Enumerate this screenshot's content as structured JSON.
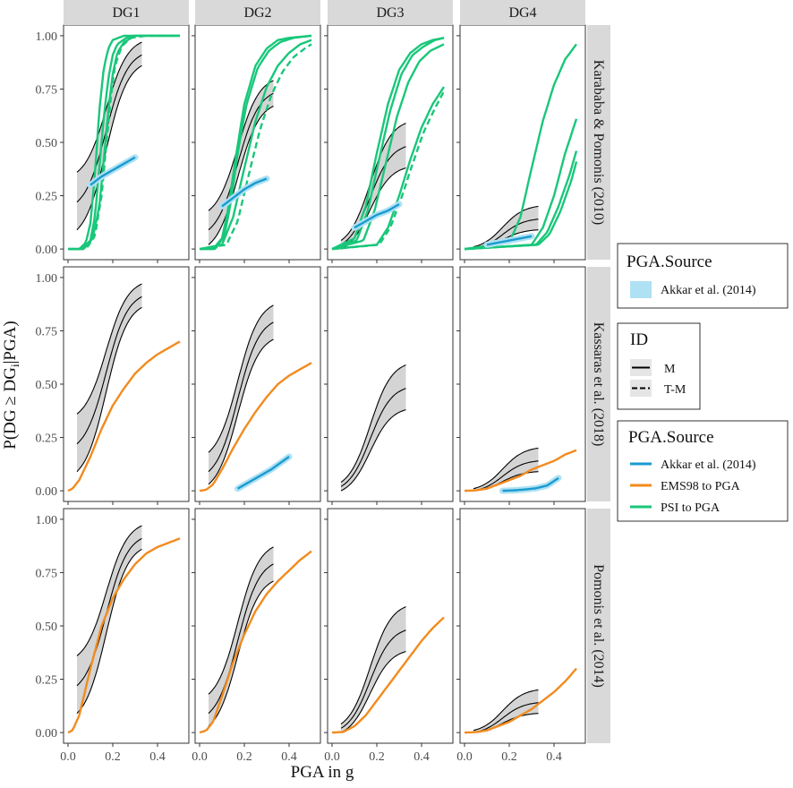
{
  "chart_data": {
    "type": "line",
    "title": "",
    "xlabel": "PGA in g",
    "ylabel": "P(DG ≥ DG_i|PGA)",
    "ylabel_main": "P(DG ≥ DG",
    "ylabel_sub": "i",
    "ylabel_tail": "|PGA)",
    "xlim": [
      -0.02,
      0.54
    ],
    "ylim": [
      -0.05,
      1.05
    ],
    "x_ticks": [
      "0.0",
      "0.2",
      "0.4"
    ],
    "x_tick_values": [
      0.0,
      0.2,
      0.4
    ],
    "y_ticks": [
      "0.00",
      "0.25",
      "0.50",
      "0.75",
      "1.00"
    ],
    "y_tick_values": [
      0.0,
      0.25,
      0.5,
      0.75,
      1.0
    ],
    "columns": [
      "DG1",
      "DG2",
      "DG3",
      "DG4"
    ],
    "rows": [
      "Karababa & Pomonis (2010)",
      "Kassaras et al. (2018)",
      "Pomonis et al. (2014)"
    ],
    "colors": {
      "akkar": "#1a9bd0",
      "ems98": "#f28b1e",
      "psi": "#19c77a",
      "band": "#bdbdbd",
      "akkar_fill": "#aee1f3",
      "curve": "#000000"
    },
    "legends": [
      {
        "title": "PGA.Source",
        "items": [
          {
            "label": "Akkar et al. (2014)",
            "kind": "fill"
          }
        ]
      },
      {
        "title": "ID",
        "items": [
          {
            "label": "M",
            "kind": "solid"
          },
          {
            "label": "T-M",
            "kind": "dashed"
          }
        ]
      },
      {
        "title": "PGA.Source",
        "items": [
          {
            "label": "Akkar et al. (2014)",
            "kind": "line",
            "color_key": "akkar"
          },
          {
            "label": "EMS98 to PGA",
            "kind": "line",
            "color_key": "ems98"
          },
          {
            "label": "PSI to PGA",
            "kind": "line",
            "color_key": "psi"
          }
        ]
      }
    ],
    "bands": [
      [
        {
          "x": [
            0.04,
            0.33
          ],
          "mid": [
            0.22,
            0.91
          ],
          "low": [
            0.09,
            0.86
          ],
          "high": [
            0.36,
            0.97
          ]
        },
        {
          "x": [
            0.04,
            0.33
          ],
          "mid": [
            0.09,
            0.73
          ],
          "low": [
            0.02,
            0.67
          ],
          "high": [
            0.18,
            0.79
          ]
        },
        {
          "x": [
            0.04,
            0.33
          ],
          "mid": [
            0.02,
            0.48
          ],
          "low": [
            0.0,
            0.38
          ],
          "high": [
            0.04,
            0.59
          ]
        },
        {
          "x": [
            0.04,
            0.33
          ],
          "mid": [
            0.0,
            0.14
          ],
          "low": [
            0.0,
            0.09
          ],
          "high": [
            0.01,
            0.2
          ]
        }
      ],
      [
        {
          "x": [
            0.04,
            0.33
          ],
          "mid": [
            0.22,
            0.91
          ],
          "low": [
            0.09,
            0.86
          ],
          "high": [
            0.36,
            0.97
          ]
        },
        {
          "x": [
            0.04,
            0.33
          ],
          "mid": [
            0.09,
            0.79
          ],
          "low": [
            0.03,
            0.71
          ],
          "high": [
            0.18,
            0.87
          ]
        },
        {
          "x": [
            0.04,
            0.33
          ],
          "mid": [
            0.02,
            0.48
          ],
          "low": [
            0.0,
            0.38
          ],
          "high": [
            0.04,
            0.59
          ]
        },
        {
          "x": [
            0.04,
            0.33
          ],
          "mid": [
            0.0,
            0.14
          ],
          "low": [
            0.0,
            0.09
          ],
          "high": [
            0.01,
            0.2
          ]
        }
      ],
      [
        {
          "x": [
            0.04,
            0.33
          ],
          "mid": [
            0.22,
            0.91
          ],
          "low": [
            0.09,
            0.86
          ],
          "high": [
            0.36,
            0.97
          ]
        },
        {
          "x": [
            0.04,
            0.33
          ],
          "mid": [
            0.09,
            0.79
          ],
          "low": [
            0.03,
            0.71
          ],
          "high": [
            0.18,
            0.87
          ]
        },
        {
          "x": [
            0.04,
            0.33
          ],
          "mid": [
            0.02,
            0.48
          ],
          "low": [
            0.0,
            0.38
          ],
          "high": [
            0.04,
            0.59
          ]
        },
        {
          "x": [
            0.04,
            0.33
          ],
          "mid": [
            0.0,
            0.14
          ],
          "low": [
            0.0,
            0.09
          ],
          "high": [
            0.01,
            0.2
          ]
        }
      ]
    ],
    "series": [
      {
        "name": "PSI to PGA M",
        "row": 0,
        "col": 0,
        "color_key": "psi",
        "dash": false,
        "x": [
          0.0,
          0.05,
          0.08,
          0.1,
          0.12,
          0.14,
          0.16,
          0.18,
          0.2,
          0.25,
          0.3,
          0.5
        ],
        "y": [
          0.0,
          0.0,
          0.03,
          0.12,
          0.35,
          0.65,
          0.85,
          0.94,
          0.98,
          1.0,
          1.0,
          1.0
        ]
      },
      {
        "name": "PSI to PGA M",
        "row": 0,
        "col": 0,
        "color_key": "psi",
        "dash": false,
        "x": [
          0.0,
          0.06,
          0.1,
          0.12,
          0.14,
          0.16,
          0.18,
          0.2,
          0.22,
          0.26,
          0.3,
          0.5
        ],
        "y": [
          0.0,
          0.0,
          0.04,
          0.15,
          0.38,
          0.62,
          0.8,
          0.91,
          0.96,
          0.99,
          1.0,
          1.0
        ]
      },
      {
        "name": "PSI to PGA M",
        "row": 0,
        "col": 0,
        "color_key": "psi",
        "dash": false,
        "x": [
          0.0,
          0.07,
          0.11,
          0.14,
          0.16,
          0.18,
          0.2,
          0.22,
          0.25,
          0.3,
          0.5
        ],
        "y": [
          0.0,
          0.0,
          0.05,
          0.2,
          0.42,
          0.65,
          0.82,
          0.92,
          0.97,
          1.0,
          1.0
        ]
      },
      {
        "name": "PSI to PGA T-M",
        "row": 0,
        "col": 0,
        "color_key": "psi",
        "dash": true,
        "x": [
          0.0,
          0.08,
          0.12,
          0.15,
          0.17,
          0.19,
          0.21,
          0.24,
          0.28,
          0.35,
          0.5
        ],
        "y": [
          0.0,
          0.0,
          0.06,
          0.25,
          0.48,
          0.7,
          0.86,
          0.95,
          0.99,
          1.0,
          1.0
        ]
      },
      {
        "name": "Akkar et al. (2014) M",
        "row": 0,
        "col": 0,
        "color_key": "akkar",
        "dash": false,
        "x": [
          0.1,
          0.15,
          0.2,
          0.25,
          0.3
        ],
        "y": [
          0.3,
          0.34,
          0.37,
          0.4,
          0.43
        ]
      },
      {
        "name": "PSI to PGA M",
        "row": 0,
        "col": 1,
        "color_key": "psi",
        "dash": false,
        "x": [
          0.0,
          0.06,
          0.1,
          0.13,
          0.16,
          0.2,
          0.25,
          0.3,
          0.35,
          0.4,
          0.5
        ],
        "y": [
          0.0,
          0.0,
          0.05,
          0.2,
          0.42,
          0.68,
          0.86,
          0.94,
          0.98,
          0.99,
          1.0
        ]
      },
      {
        "name": "PSI to PGA M",
        "row": 0,
        "col": 1,
        "color_key": "psi",
        "dash": false,
        "x": [
          0.0,
          0.07,
          0.11,
          0.14,
          0.17,
          0.21,
          0.26,
          0.31,
          0.36,
          0.42,
          0.5
        ],
        "y": [
          0.0,
          0.0,
          0.06,
          0.22,
          0.45,
          0.68,
          0.85,
          0.93,
          0.97,
          0.99,
          1.0
        ]
      },
      {
        "name": "PSI to PGA M",
        "row": 0,
        "col": 1,
        "color_key": "psi",
        "dash": false,
        "x": [
          0.0,
          0.1,
          0.15,
          0.2,
          0.25,
          0.3,
          0.35,
          0.4,
          0.45,
          0.5
        ],
        "y": [
          0.0,
          0.02,
          0.15,
          0.38,
          0.6,
          0.76,
          0.86,
          0.92,
          0.96,
          0.98
        ]
      },
      {
        "name": "PSI to PGA T-M",
        "row": 0,
        "col": 1,
        "color_key": "psi",
        "dash": true,
        "x": [
          0.0,
          0.12,
          0.17,
          0.22,
          0.27,
          0.32,
          0.37,
          0.42,
          0.47,
          0.5
        ],
        "y": [
          0.0,
          0.02,
          0.13,
          0.35,
          0.56,
          0.72,
          0.83,
          0.9,
          0.94,
          0.96
        ]
      },
      {
        "name": "Akkar et al. (2014) M",
        "row": 0,
        "col": 1,
        "color_key": "akkar",
        "dash": false,
        "x": [
          0.1,
          0.15,
          0.2,
          0.25,
          0.3
        ],
        "y": [
          0.2,
          0.24,
          0.28,
          0.31,
          0.33
        ]
      },
      {
        "name": "PSI to PGA M",
        "row": 0,
        "col": 2,
        "color_key": "psi",
        "dash": false,
        "x": [
          0.0,
          0.1,
          0.15,
          0.2,
          0.25,
          0.3,
          0.35,
          0.4,
          0.45,
          0.5
        ],
        "y": [
          0.0,
          0.05,
          0.2,
          0.45,
          0.68,
          0.84,
          0.92,
          0.96,
          0.98,
          0.99
        ]
      },
      {
        "name": "PSI to PGA M",
        "row": 0,
        "col": 2,
        "color_key": "psi",
        "dash": false,
        "x": [
          0.0,
          0.11,
          0.16,
          0.21,
          0.26,
          0.31,
          0.36,
          0.41,
          0.46,
          0.5
        ],
        "y": [
          0.0,
          0.04,
          0.18,
          0.42,
          0.65,
          0.82,
          0.91,
          0.95,
          0.98,
          0.99
        ]
      },
      {
        "name": "PSI to PGA M",
        "row": 0,
        "col": 2,
        "color_key": "psi",
        "dash": false,
        "x": [
          0.0,
          0.14,
          0.19,
          0.24,
          0.29,
          0.34,
          0.39,
          0.44,
          0.5
        ],
        "y": [
          0.0,
          0.04,
          0.18,
          0.4,
          0.62,
          0.78,
          0.88,
          0.93,
          0.96
        ]
      },
      {
        "name": "PSI to PGA M",
        "row": 0,
        "col": 2,
        "color_key": "psi",
        "dash": false,
        "x": [
          0.0,
          0.2,
          0.25,
          0.3,
          0.35,
          0.4,
          0.45,
          0.5
        ],
        "y": [
          0.0,
          0.02,
          0.1,
          0.25,
          0.42,
          0.57,
          0.68,
          0.76
        ]
      },
      {
        "name": "PSI to PGA T-M",
        "row": 0,
        "col": 2,
        "color_key": "psi",
        "dash": true,
        "x": [
          0.0,
          0.21,
          0.26,
          0.31,
          0.36,
          0.41,
          0.46,
          0.5
        ],
        "y": [
          0.0,
          0.02,
          0.1,
          0.24,
          0.4,
          0.55,
          0.66,
          0.74
        ]
      },
      {
        "name": "Akkar et al. (2014) M",
        "row": 0,
        "col": 2,
        "color_key": "akkar",
        "dash": false,
        "x": [
          0.1,
          0.15,
          0.2,
          0.25,
          0.3
        ],
        "y": [
          0.1,
          0.13,
          0.16,
          0.18,
          0.21
        ]
      },
      {
        "name": "PSI to PGA M",
        "row": 0,
        "col": 3,
        "color_key": "psi",
        "dash": false,
        "x": [
          0.0,
          0.2,
          0.25,
          0.3,
          0.35,
          0.4,
          0.45,
          0.5
        ],
        "y": [
          0.0,
          0.03,
          0.15,
          0.38,
          0.6,
          0.77,
          0.89,
          0.96
        ]
      },
      {
        "name": "PSI to PGA M",
        "row": 0,
        "col": 3,
        "color_key": "psi",
        "dash": false,
        "x": [
          0.0,
          0.3,
          0.35,
          0.4,
          0.45,
          0.5
        ],
        "y": [
          0.0,
          0.02,
          0.1,
          0.25,
          0.45,
          0.61
        ]
      },
      {
        "name": "PSI to PGA M",
        "row": 0,
        "col": 3,
        "color_key": "psi",
        "dash": false,
        "x": [
          0.0,
          0.32,
          0.37,
          0.42,
          0.47,
          0.5
        ],
        "y": [
          0.0,
          0.02,
          0.08,
          0.2,
          0.35,
          0.46
        ]
      },
      {
        "name": "PSI to PGA M",
        "row": 0,
        "col": 3,
        "color_key": "psi",
        "dash": false,
        "x": [
          0.0,
          0.33,
          0.38,
          0.43,
          0.48,
          0.5
        ],
        "y": [
          0.0,
          0.02,
          0.07,
          0.18,
          0.33,
          0.41
        ]
      },
      {
        "name": "Akkar et al. (2014) M",
        "row": 0,
        "col": 3,
        "color_key": "akkar",
        "dash": false,
        "x": [
          0.1,
          0.15,
          0.2,
          0.25,
          0.3
        ],
        "y": [
          0.02,
          0.03,
          0.04,
          0.05,
          0.06
        ]
      },
      {
        "name": "EMS98 to PGA M",
        "row": 1,
        "col": 0,
        "color_key": "ems98",
        "dash": false,
        "x": [
          0.0,
          0.02,
          0.05,
          0.1,
          0.15,
          0.2,
          0.25,
          0.3,
          0.35,
          0.4,
          0.45,
          0.5
        ],
        "y": [
          0.0,
          0.01,
          0.05,
          0.16,
          0.29,
          0.4,
          0.48,
          0.55,
          0.6,
          0.64,
          0.67,
          0.7
        ]
      },
      {
        "name": "EMS98 to PGA M",
        "row": 1,
        "col": 1,
        "color_key": "ems98",
        "dash": false,
        "x": [
          0.0,
          0.03,
          0.06,
          0.1,
          0.15,
          0.2,
          0.25,
          0.3,
          0.35,
          0.4,
          0.45,
          0.5
        ],
        "y": [
          0.0,
          0.005,
          0.03,
          0.1,
          0.2,
          0.29,
          0.37,
          0.44,
          0.5,
          0.54,
          0.57,
          0.6
        ]
      },
      {
        "name": "Akkar et al. (2014) M",
        "row": 1,
        "col": 1,
        "color_key": "akkar",
        "dash": false,
        "x": [
          0.17,
          0.22,
          0.27,
          0.32,
          0.36,
          0.4
        ],
        "y": [
          0.01,
          0.04,
          0.07,
          0.1,
          0.13,
          0.16
        ]
      },
      {
        "name": "EMS98 to PGA M",
        "row": 1,
        "col": 3,
        "color_key": "ems98",
        "dash": false,
        "x": [
          0.0,
          0.05,
          0.1,
          0.15,
          0.2,
          0.25,
          0.3,
          0.35,
          0.4,
          0.45,
          0.5
        ],
        "y": [
          0.0,
          0.002,
          0.01,
          0.03,
          0.05,
          0.07,
          0.1,
          0.12,
          0.14,
          0.17,
          0.19
        ]
      },
      {
        "name": "Akkar et al. (2014) M",
        "row": 1,
        "col": 3,
        "color_key": "akkar",
        "dash": false,
        "x": [
          0.17,
          0.22,
          0.27,
          0.32,
          0.37,
          0.42
        ],
        "y": [
          0.0,
          0.002,
          0.006,
          0.012,
          0.025,
          0.06
        ]
      },
      {
        "name": "EMS98 to PGA M",
        "row": 2,
        "col": 0,
        "color_key": "ems98",
        "dash": false,
        "x": [
          0.0,
          0.02,
          0.05,
          0.1,
          0.15,
          0.2,
          0.25,
          0.3,
          0.35,
          0.4,
          0.45,
          0.5
        ],
        "y": [
          0.0,
          0.01,
          0.08,
          0.3,
          0.5,
          0.63,
          0.72,
          0.79,
          0.84,
          0.87,
          0.89,
          0.91
        ]
      },
      {
        "name": "EMS98 to PGA M",
        "row": 2,
        "col": 1,
        "color_key": "ems98",
        "dash": false,
        "x": [
          0.0,
          0.03,
          0.06,
          0.1,
          0.15,
          0.2,
          0.25,
          0.3,
          0.35,
          0.4,
          0.45,
          0.5
        ],
        "y": [
          0.0,
          0.01,
          0.05,
          0.17,
          0.33,
          0.46,
          0.57,
          0.65,
          0.71,
          0.76,
          0.81,
          0.85
        ]
      },
      {
        "name": "EMS98 to PGA M",
        "row": 2,
        "col": 2,
        "color_key": "ems98",
        "dash": false,
        "x": [
          0.0,
          0.05,
          0.1,
          0.15,
          0.2,
          0.25,
          0.3,
          0.35,
          0.4,
          0.45,
          0.5
        ],
        "y": [
          0.0,
          0.003,
          0.03,
          0.08,
          0.15,
          0.22,
          0.29,
          0.36,
          0.43,
          0.49,
          0.54
        ]
      },
      {
        "name": "EMS98 to PGA M",
        "row": 2,
        "col": 3,
        "color_key": "ems98",
        "dash": false,
        "x": [
          0.0,
          0.05,
          0.1,
          0.15,
          0.2,
          0.25,
          0.3,
          0.35,
          0.4,
          0.45,
          0.5
        ],
        "y": [
          0.0,
          0.002,
          0.01,
          0.03,
          0.05,
          0.08,
          0.11,
          0.15,
          0.19,
          0.24,
          0.3
        ]
      }
    ]
  }
}
